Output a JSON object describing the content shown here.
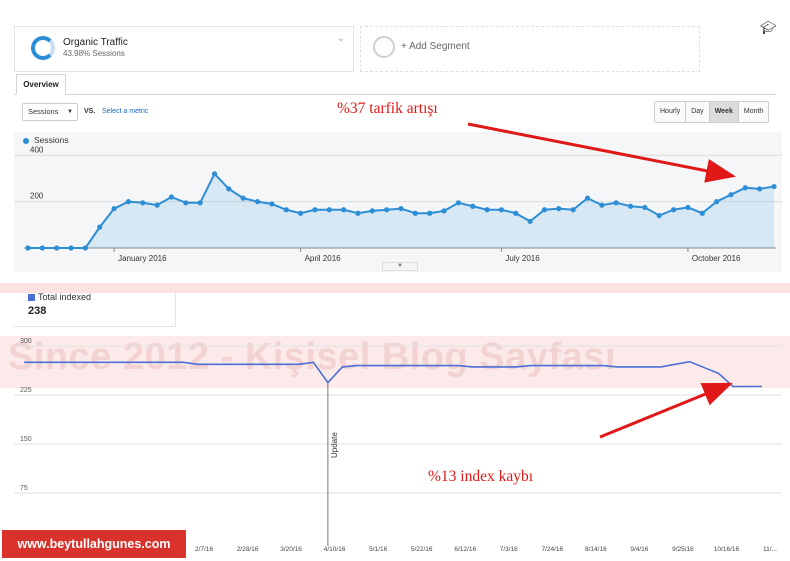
{
  "segments": {
    "primary": {
      "title": "Organic Traffic",
      "subtitle": "43.98% Sessions"
    },
    "add_label": "+ Add Segment"
  },
  "icons": {
    "ring": "segment-ring-icon",
    "chevron": "chevron-down-icon",
    "cap": "graduation-cap-icon",
    "caret": "caret-down-icon"
  },
  "tabs": {
    "overview": "Overview"
  },
  "toolbar": {
    "metric": "Sessions",
    "vs": "VS.",
    "select_metric": "Select a metric",
    "time_buttons": [
      "Hourly",
      "Day",
      "Week",
      "Month"
    ],
    "active_time": "Week"
  },
  "chart_data": [
    {
      "type": "area",
      "legend": [
        "Sessions"
      ],
      "series": [
        {
          "name": "Sessions",
          "values": [
            0,
            0,
            0,
            0,
            0,
            90,
            170,
            200,
            195,
            185,
            220,
            195,
            195,
            320,
            255,
            215,
            200,
            190,
            165,
            150,
            165,
            165,
            165,
            150,
            160,
            165,
            170,
            150,
            150,
            160,
            195,
            180,
            165,
            165,
            150,
            115,
            165,
            170,
            165,
            215,
            185,
            195,
            180,
            175,
            140,
            165,
            175,
            150,
            200,
            230,
            260,
            255,
            265
          ],
          "color": "#2d8ed6"
        }
      ],
      "x_ticks": [
        {
          "label": "January 2016",
          "at": 6
        },
        {
          "label": "April 2016",
          "at": 19
        },
        {
          "label": "July 2016",
          "at": 33
        },
        {
          "label": "October 2016",
          "at": 46
        }
      ],
      "y_ticks": [
        200,
        400
      ],
      "ylim": [
        0,
        440
      ],
      "grid": true
    },
    {
      "type": "line",
      "legend": [
        "Total indexed"
      ],
      "total_label": "Total indexed",
      "total_value": "238",
      "series": [
        {
          "name": "Total indexed",
          "values": [
            275,
            275,
            275,
            275,
            275,
            275,
            275,
            275,
            275,
            275,
            275,
            275,
            272,
            272,
            272,
            272,
            272,
            272,
            272,
            272,
            275,
            244,
            268,
            270,
            270,
            270,
            270,
            270,
            270,
            270,
            270,
            268,
            268,
            268,
            268,
            270,
            270,
            270,
            270,
            270,
            270,
            268,
            268,
            268,
            268,
            272,
            276,
            267,
            258,
            238,
            238,
            238
          ],
          "color": "#4a6fd6"
        }
      ],
      "x_ticks": [
        "2/7/16",
        "2/28/16",
        "3/20/16",
        "4/10/16",
        "5/1/16",
        "5/22/16",
        "6/12/16",
        "7/3/16",
        "7/24/16",
        "8/14/16",
        "9/4/16",
        "9/25/16",
        "10/16/16",
        "11/..."
      ],
      "y_ticks": [
        75,
        150,
        225,
        300
      ],
      "ylim": [
        0,
        300
      ],
      "event_label": "Update",
      "event_index": 21
    }
  ],
  "annotations": {
    "traffic_increase": "%37 tarfik artışı",
    "index_loss": "%13 index kaybı"
  },
  "arrow_color": "#e01818",
  "watermark": "Since 2012 - Kişisel Blog Sayfası",
  "site_badge": "www.beytullahgunes.com"
}
